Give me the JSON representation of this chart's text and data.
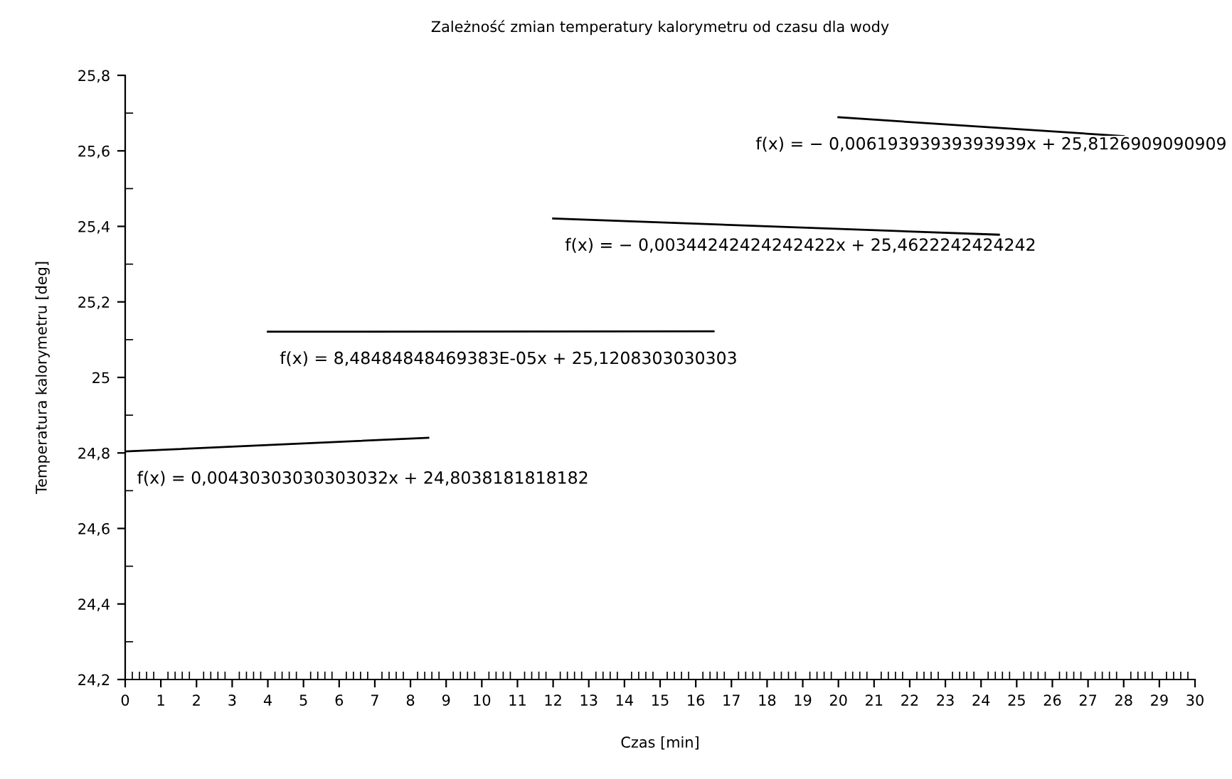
{
  "chart_data": {
    "type": "line",
    "title": "Zależność zmian temperatury kalorymetru od czasu dla wody",
    "xlabel": "Czas [min]",
    "ylabel": "Temperatura kalorymetru [deg]",
    "series": [
      {
        "x": [
          0,
          8.5
        ],
        "values": [
          24.804,
          24.84
        ],
        "color": "#000000"
      },
      {
        "x": [
          4,
          16.5
        ],
        "values": [
          25.121,
          25.122
        ],
        "color": "#000000"
      },
      {
        "x": [
          12,
          24.5
        ],
        "values": [
          25.421,
          25.378
        ],
        "color": "#000000"
      },
      {
        "x": [
          20,
          28
        ],
        "values": [
          25.689,
          25.639
        ],
        "color": "#000000"
      }
    ],
    "annotations": [
      "f(x) = 0,00430303030303032x + 24,8038181818182",
      "f(x) = 8,48484848469383E-05x + 25,1208303030303",
      "f(x) = − 0,00344242424242422x + 25,4622242424242",
      "f(x) = − 0,00619393939393939x + 25,8126909090909"
    ],
    "xlim": [
      0,
      30
    ],
    "xticks": [
      0,
      1,
      2,
      3,
      4,
      5,
      6,
      7,
      8,
      9,
      10,
      11,
      12,
      13,
      14,
      15,
      16,
      17,
      18,
      19,
      20,
      21,
      22,
      23,
      24,
      25,
      26,
      27,
      28,
      29,
      30
    ],
    "ylim": [
      24.2,
      25.8
    ],
    "yticks": [
      {
        "value": 24.2,
        "label": "24,2"
      },
      {
        "value": 24.4,
        "label": "24,4"
      },
      {
        "value": 24.6,
        "label": "24,6"
      },
      {
        "value": 24.8,
        "label": "24,8"
      },
      25,
      {
        "value": 25.2,
        "label": "25,2"
      },
      {
        "value": 25.4,
        "label": "25,4"
      },
      {
        "value": 25.6,
        "label": "25,6"
      },
      {
        "value": 25.8,
        "label": "25,8"
      }
    ],
    "grid": false,
    "legend": false,
    "marker": "none",
    "line_style": "solid"
  }
}
